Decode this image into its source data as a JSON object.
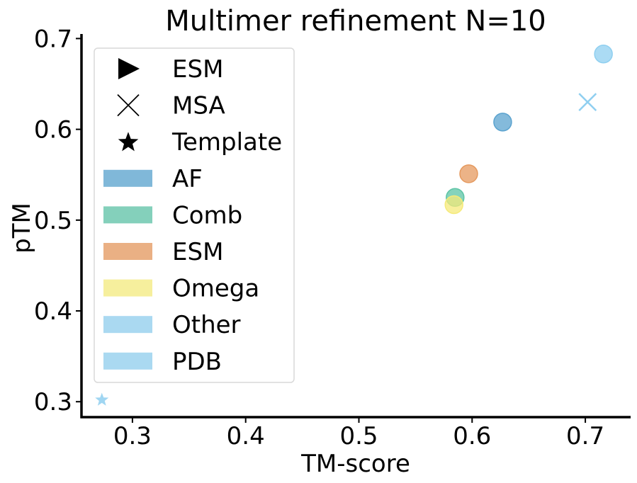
{
  "chart_data": {
    "type": "scatter",
    "title": "Multimer refinement N=10",
    "xlabel": "TM-score",
    "ylabel": "pTM",
    "xlim": [
      0.255,
      0.74
    ],
    "ylim": [
      0.283,
      0.705
    ],
    "xticks": [
      0.3,
      0.4,
      0.5,
      0.6,
      0.7
    ],
    "yticks": [
      0.3,
      0.4,
      0.5,
      0.6,
      0.7
    ],
    "xtick_labels": [
      "0.3",
      "0.4",
      "0.5",
      "0.6",
      "0.7"
    ],
    "ytick_labels": [
      "0.3",
      "0.4",
      "0.5",
      "0.6",
      "0.7"
    ],
    "grid": false,
    "legend_position": "upper-left",
    "marker_legend": [
      {
        "label": "ESM",
        "marker": "triangle-right"
      },
      {
        "label": "MSA",
        "marker": "x"
      },
      {
        "label": "Template",
        "marker": "star"
      }
    ],
    "color_legend": [
      {
        "label": "AF",
        "color": "#80b8d9"
      },
      {
        "label": "Comb",
        "color": "#84d0bb"
      },
      {
        "label": "ESM",
        "color": "#eab084"
      },
      {
        "label": "Omega",
        "color": "#f6ef9d"
      },
      {
        "label": "Other",
        "color": "#aad9f1"
      },
      {
        "label": "PDB",
        "color": "#aad9f1"
      }
    ],
    "points": [
      {
        "x": 0.627,
        "y": 0.608,
        "marker": "circle",
        "color": "#5ba3cf"
      },
      {
        "x": 0.597,
        "y": 0.551,
        "marker": "circle",
        "color": "#e59a5f"
      },
      {
        "x": 0.585,
        "y": 0.525,
        "marker": "circle",
        "color": "#5cc4a5"
      },
      {
        "x": 0.584,
        "y": 0.517,
        "marker": "circle",
        "color": "#f5ea7a"
      },
      {
        "x": 0.716,
        "y": 0.683,
        "marker": "circle",
        "color": "#8fcff0"
      },
      {
        "x": 0.702,
        "y": 0.63,
        "marker": "x",
        "color": "#8fcff0"
      },
      {
        "x": 0.273,
        "y": 0.302,
        "marker": "star",
        "color": "#8fcff0"
      }
    ]
  }
}
